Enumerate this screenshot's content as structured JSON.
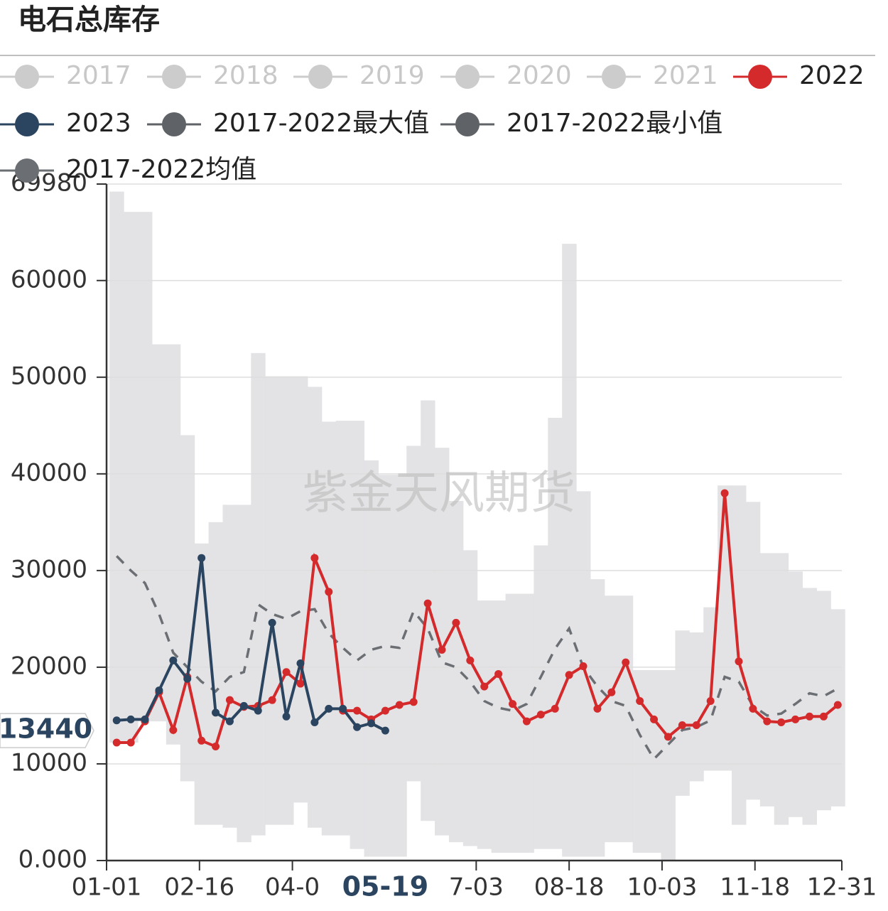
{
  "chart_data": {
    "type": "line",
    "title": "电石总库存",
    "watermark": "紫金天风期货",
    "x": [
      5,
      12,
      19,
      26,
      33,
      40,
      47,
      54,
      61,
      68,
      75,
      82,
      89,
      96,
      103,
      110,
      117,
      124,
      131,
      138,
      145,
      152,
      159,
      166,
      173,
      180,
      187,
      194,
      201,
      208,
      215,
      222,
      229,
      236,
      243,
      250,
      257,
      264,
      271,
      278,
      285,
      292,
      299,
      306,
      313,
      320,
      327,
      334,
      341,
      348,
      355,
      362
    ],
    "xlim": [
      0,
      364
    ],
    "xticks": [
      {
        "value": 0,
        "label": "01-01"
      },
      {
        "value": 46,
        "label": "02-16"
      },
      {
        "value": 92,
        "label": "04-0"
      },
      {
        "value": 183,
        "label": "7-03"
      },
      {
        "value": 229,
        "label": "08-18"
      },
      {
        "value": 275,
        "label": "10-03"
      },
      {
        "value": 321,
        "label": "11-18"
      },
      {
        "value": 364,
        "label": "12-31"
      }
    ],
    "ylim": [
      0,
      69980
    ],
    "yticks": [
      {
        "value": 0,
        "label": "0.000"
      },
      10000,
      20000,
      30000,
      40000,
      50000,
      60000,
      69980
    ],
    "grid": true,
    "band_color": "#e3e3e6",
    "axis_pointer": {
      "x": {
        "value": 138,
        "label": "05-19"
      },
      "y": 13440
    },
    "series": [
      {
        "name": "2017",
        "color": "#cccccc",
        "hidden": true
      },
      {
        "name": "2018",
        "color": "#cccccc",
        "hidden": true
      },
      {
        "name": "2019",
        "color": "#cccccc",
        "hidden": true
      },
      {
        "name": "2020",
        "color": "#cccccc",
        "hidden": true
      },
      {
        "name": "2021",
        "color": "#cccccc",
        "hidden": true
      },
      {
        "name": "2022",
        "color": "#d42a2c",
        "style": "line",
        "values": [
          12200,
          12200,
          14400,
          17400,
          13500,
          19000,
          12400,
          11800,
          16600,
          15900,
          16000,
          16600,
          19500,
          18300,
          31300,
          27800,
          15500,
          15500,
          14600,
          15500,
          16100,
          16400,
          26600,
          21800,
          24600,
          20700,
          18000,
          19300,
          16200,
          14400,
          15100,
          15700,
          19200,
          20100,
          15700,
          17400,
          20500,
          16500,
          14600,
          12800,
          14000,
          14000,
          16500,
          38000,
          20600,
          15700,
          14400,
          14300,
          14600,
          14900,
          14900,
          16100
        ]
      },
      {
        "name": "2023",
        "color": "#2b4560",
        "style": "line",
        "values": [
          14500,
          14600,
          14600,
          17600,
          20700,
          18800,
          31300,
          15300,
          14400,
          16000,
          15500,
          24600,
          14900,
          20400,
          14300,
          15700,
          15700,
          13800,
          14200,
          13440,
          null,
          null,
          null,
          null,
          null,
          null,
          null,
          null,
          null,
          null,
          null,
          null,
          null,
          null,
          null,
          null,
          null,
          null,
          null,
          null,
          null,
          null,
          null,
          null,
          null,
          null,
          null,
          null,
          null,
          null,
          null,
          null
        ]
      },
      {
        "name": "2017-2022最大值",
        "color": "#5f6266",
        "style": "band_max",
        "values": [
          69200,
          67100,
          67100,
          53400,
          53400,
          44000,
          32800,
          35000,
          36800,
          36800,
          52500,
          50100,
          50100,
          50100,
          49000,
          45400,
          45500,
          45500,
          41400,
          39900,
          39900,
          42900,
          47600,
          42700,
          37200,
          32100,
          26900,
          26900,
          27600,
          27600,
          32600,
          45800,
          63800,
          38200,
          29100,
          27400,
          27400,
          19700,
          19700,
          19700,
          23800,
          23600,
          26200,
          38800,
          38800,
          37100,
          31800,
          31800,
          29900,
          28200,
          27900,
          26000
        ]
      },
      {
        "name": "2017-2022最小值",
        "color": "#5f6266",
        "style": "band_min",
        "values": [
          12200,
          12200,
          14400,
          14400,
          12000,
          8200,
          3700,
          3700,
          3400,
          1900,
          2600,
          3700,
          3700,
          6000,
          3400,
          2600,
          2600,
          1200,
          400,
          400,
          400,
          8200,
          4100,
          2600,
          1900,
          1500,
          1200,
          800,
          800,
          800,
          1200,
          1200,
          400,
          400,
          400,
          1900,
          1900,
          800,
          800,
          0,
          6700,
          8200,
          9300,
          9300,
          3700,
          6300,
          5600,
          3700,
          4500,
          3700,
          5200,
          5600
        ]
      },
      {
        "name": "2017-2022均值",
        "color": "#6b6e72",
        "style": "dashed",
        "values": [
          31500,
          30000,
          28700,
          25500,
          21500,
          20000,
          18500,
          17500,
          19000,
          19500,
          26500,
          25500,
          25000,
          25800,
          26000,
          23500,
          22000,
          20700,
          21800,
          22200,
          22000,
          25800,
          24000,
          20500,
          20000,
          18500,
          16500,
          15800,
          15500,
          16200,
          19000,
          21900,
          24000,
          20000,
          18000,
          16500,
          16000,
          13000,
          10500,
          12000,
          13500,
          13800,
          14500,
          19000,
          18500,
          16000,
          15000,
          15200,
          16200,
          17300,
          17000,
          17800
        ]
      }
    ]
  }
}
